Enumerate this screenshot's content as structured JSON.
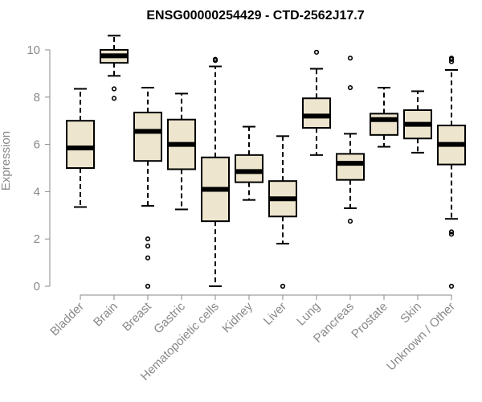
{
  "chart_data": {
    "type": "boxplot",
    "title": "ENSG00000254429 - CTD-2562J17.7",
    "xlabel": "",
    "ylabel": "Expression",
    "ylim": [
      0,
      10
    ],
    "yticks": [
      0,
      2,
      4,
      6,
      8,
      10
    ],
    "grid": false,
    "legend": "none",
    "colors": {
      "box_fill": "#ede5cd",
      "box_stroke": "#000000",
      "median": "#000000",
      "axis": "#888888"
    },
    "categories": [
      "Bladder",
      "Brain",
      "Breast",
      "Gastric",
      "Hematopoietic cells",
      "Kidney",
      "Liver",
      "Lung",
      "Pancreas",
      "Prostate",
      "Skin",
      "Unknown / Other"
    ],
    "boxes": [
      {
        "name": "Bladder",
        "whisker_low": 3.35,
        "q1": 5.0,
        "median": 5.85,
        "q3": 7.0,
        "whisker_high": 8.35,
        "outliers": []
      },
      {
        "name": "Brain",
        "whisker_low": 8.9,
        "q1": 9.45,
        "median": 9.75,
        "q3": 10.0,
        "whisker_high": 10.6,
        "outliers": [
          7.95,
          8.35
        ]
      },
      {
        "name": "Breast",
        "whisker_low": 3.4,
        "q1": 5.3,
        "median": 6.55,
        "q3": 7.35,
        "whisker_high": 8.4,
        "outliers": [
          2.0,
          1.7,
          1.2,
          0.0
        ]
      },
      {
        "name": "Gastric",
        "whisker_low": 3.25,
        "q1": 4.95,
        "median": 6.0,
        "q3": 7.05,
        "whisker_high": 8.15,
        "outliers": []
      },
      {
        "name": "Hematopoietic cells",
        "whisker_low": 0.0,
        "q1": 2.75,
        "median": 4.1,
        "q3": 5.45,
        "whisker_high": 9.3,
        "outliers": [
          9.55,
          9.6
        ]
      },
      {
        "name": "Kidney",
        "whisker_low": 3.65,
        "q1": 4.4,
        "median": 4.85,
        "q3": 5.55,
        "whisker_high": 6.75,
        "outliers": []
      },
      {
        "name": "Liver",
        "whisker_low": 1.8,
        "q1": 2.95,
        "median": 3.7,
        "q3": 4.45,
        "whisker_high": 6.35,
        "outliers": [
          0.0
        ]
      },
      {
        "name": "Lung",
        "whisker_low": 5.55,
        "q1": 6.7,
        "median": 7.2,
        "q3": 7.95,
        "whisker_high": 9.2,
        "outliers": [
          9.9
        ]
      },
      {
        "name": "Pancreas",
        "whisker_low": 3.3,
        "q1": 4.5,
        "median": 5.2,
        "q3": 5.6,
        "whisker_high": 6.45,
        "outliers": [
          2.75,
          8.4,
          9.65
        ]
      },
      {
        "name": "Prostate",
        "whisker_low": 5.9,
        "q1": 6.4,
        "median": 7.05,
        "q3": 7.3,
        "whisker_high": 8.4,
        "outliers": []
      },
      {
        "name": "Skin",
        "whisker_low": 5.65,
        "q1": 6.25,
        "median": 6.85,
        "q3": 7.45,
        "whisker_high": 8.25,
        "outliers": []
      },
      {
        "name": "Unknown / Other",
        "whisker_low": 2.85,
        "q1": 5.15,
        "median": 6.0,
        "q3": 6.8,
        "whisker_high": 9.15,
        "outliers": [
          9.5,
          9.6,
          9.65,
          2.3,
          2.2,
          0.0
        ]
      }
    ]
  }
}
